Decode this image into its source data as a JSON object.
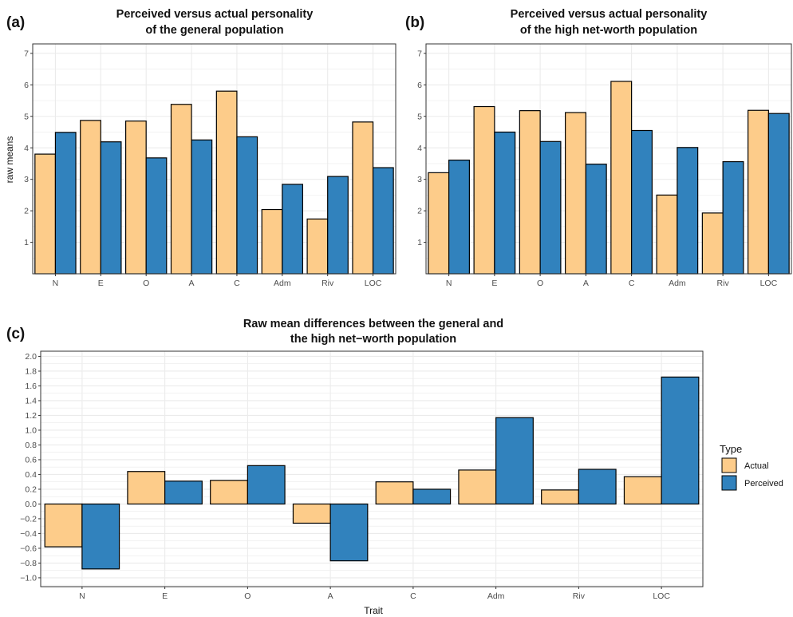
{
  "colors": {
    "actual": "#FDCC8A",
    "perceived": "#3182BD",
    "grid": "#EBEBEB",
    "border": "#333333"
  },
  "legend": {
    "title": "Type",
    "items": [
      "Actual",
      "Perceived"
    ],
    "placement": "right"
  },
  "chart_data": [
    {
      "type": "bar",
      "panel": "(a)",
      "title": [
        "Perceived versus actual personality",
        "of the general population"
      ],
      "xlabel": "",
      "ylabel": "raw means",
      "categories": [
        "N",
        "E",
        "O",
        "A",
        "C",
        "Adm",
        "Riv",
        "LOC"
      ],
      "series": [
        {
          "name": "Actual",
          "values": [
            3.8,
            4.87,
            4.85,
            5.38,
            5.8,
            2.04,
            1.74,
            4.82
          ]
        },
        {
          "name": "Perceived",
          "values": [
            4.49,
            4.19,
            3.68,
            4.25,
            4.35,
            2.84,
            3.09,
            3.37
          ]
        }
      ],
      "ylim": [
        0.0,
        7.3
      ],
      "yticks": [
        1,
        2,
        3,
        4,
        5,
        6,
        7
      ],
      "grid": true
    },
    {
      "type": "bar",
      "panel": "(b)",
      "title": [
        "Perceived versus actual personality",
        "of the high net-worth population"
      ],
      "xlabel": "",
      "ylabel": "",
      "categories": [
        "N",
        "E",
        "O",
        "A",
        "C",
        "Adm",
        "Riv",
        "LOC"
      ],
      "series": [
        {
          "name": "Actual",
          "values": [
            3.21,
            5.31,
            5.18,
            5.12,
            6.11,
            2.5,
            1.93,
            5.19
          ]
        },
        {
          "name": "Perceived",
          "values": [
            3.61,
            4.5,
            4.2,
            3.48,
            4.55,
            4.01,
            3.56,
            5.09
          ]
        }
      ],
      "ylim": [
        0.0,
        7.3
      ],
      "yticks": [
        1,
        2,
        3,
        4,
        5,
        6,
        7
      ],
      "grid": true
    },
    {
      "type": "bar",
      "panel": "(c)",
      "title": [
        "Raw mean differences between the general and",
        "the high net−worth population"
      ],
      "xlabel": "Trait",
      "ylabel": "",
      "categories": [
        "N",
        "E",
        "O",
        "A",
        "C",
        "Adm",
        "Riv",
        "LOC"
      ],
      "series": [
        {
          "name": "Actual",
          "values": [
            -0.58,
            0.44,
            0.32,
            -0.26,
            0.3,
            0.46,
            0.19,
            0.37
          ]
        },
        {
          "name": "Perceived",
          "values": [
            -0.88,
            0.31,
            0.52,
            -0.77,
            0.2,
            1.17,
            0.47,
            1.72
          ]
        }
      ],
      "ylim": [
        -1.12,
        2.07
      ],
      "yticks": [
        "−1.0",
        "−0.8",
        "−0.6",
        "−0.4",
        "−0.2",
        "0.0",
        "0.2",
        "0.4",
        "0.6",
        "0.8",
        "1.0",
        "1.2",
        "1.4",
        "1.6",
        "1.8",
        "2.0"
      ],
      "grid": true
    }
  ]
}
